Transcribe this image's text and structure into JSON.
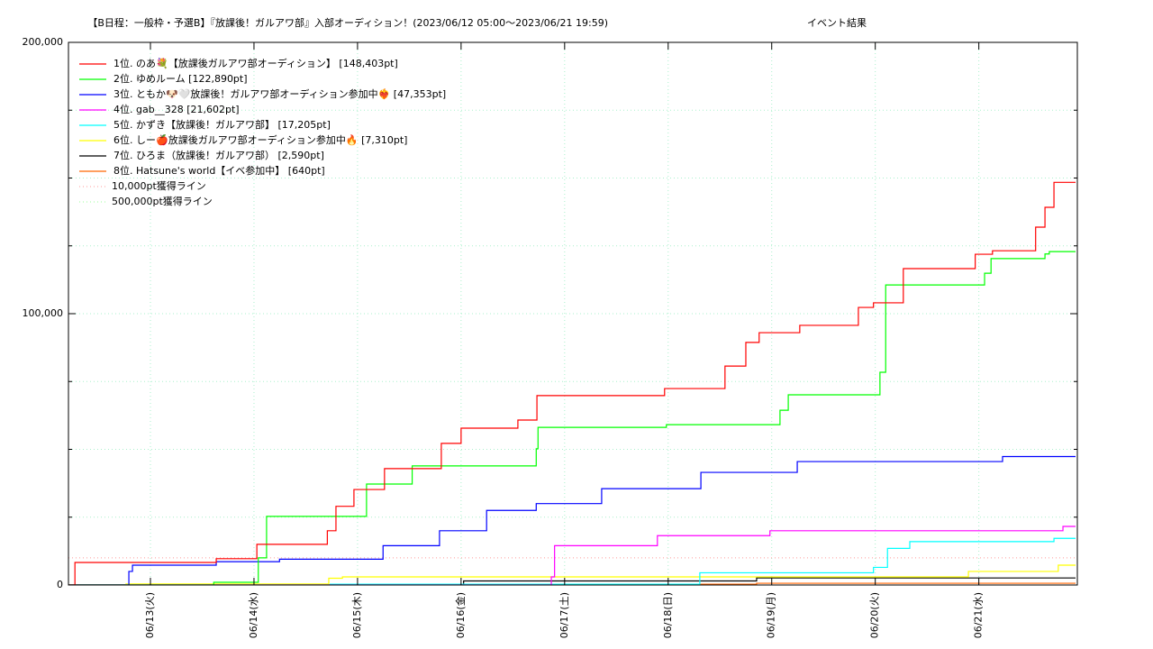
{
  "chart_data": {
    "type": "line",
    "step": true,
    "title": "【B日程：一般枠・予選B】『放課後！ガルアワ部』入部オーディション！(2023/06/12 05:00〜2023/06/21 19:59)",
    "subtitle": "イベント結果",
    "xlim": [
      "2023/06/12 05:00",
      "2023/06/21 22:50"
    ],
    "xticks": [
      {
        "value": "2023/06/13 00:00",
        "label": "06/13(火)"
      },
      {
        "value": "2023/06/14 00:00",
        "label": "06/14(水)"
      },
      {
        "value": "2023/06/15 00:00",
        "label": "06/15(木)"
      },
      {
        "value": "2023/06/16 00:00",
        "label": "06/16(金)"
      },
      {
        "value": "2023/06/17 00:00",
        "label": "06/17(土)"
      },
      {
        "value": "2023/06/18 00:00",
        "label": "06/18(日)"
      },
      {
        "value": "2023/06/19 00:00",
        "label": "06/19(月)"
      },
      {
        "value": "2023/06/20 00:00",
        "label": "06/20(火)"
      },
      {
        "value": "2023/06/21 00:00",
        "label": "06/21(水)"
      }
    ],
    "ylim": [
      0,
      200000
    ],
    "yticks": [
      0,
      {
        "value": 100000,
        "label": "100,000"
      },
      {
        "value": 200000,
        "label": "200,000"
      }
    ],
    "yminorticks": [
      25000,
      50000,
      75000,
      125000,
      150000,
      175000
    ],
    "grid": true,
    "legend": "upper left",
    "series": [
      {
        "name": "1位. のあ💐【放課後ガルアワ部オーディション】 [148,403pt]",
        "color": "#ff0000",
        "x": [
          "2023/06/12 05:00",
          "2023/06/12 06:30",
          "2023/06/13 15:15",
          "2023/06/14 00:40",
          "2023/06/14 17:00",
          "2023/06/14 19:00",
          "2023/06/14 23:10",
          "2023/06/15 06:15",
          "2023/06/15 19:25",
          "2023/06/16 00:00",
          "2023/06/16 13:10",
          "2023/06/16 17:35",
          "2023/06/17 23:10",
          "2023/06/18 13:10",
          "2023/06/18 18:00",
          "2023/06/18 21:05",
          "2023/06/19 06:30",
          "2023/06/19 20:05",
          "2023/06/19 23:35",
          "2023/06/20 06:30",
          "2023/06/20 23:10",
          "2023/06/21 03:10",
          "2023/06/21 13:10",
          "2023/06/21 15:20",
          "2023/06/21 17:25"
        ],
        "values": [
          0,
          8300,
          9700,
          15000,
          20000,
          29000,
          35200,
          42900,
          52200,
          57800,
          60800,
          69800,
          72400,
          80700,
          89400,
          93000,
          95700,
          102300,
          104000,
          116600,
          121900,
          123200,
          131900,
          139200,
          148403
        ]
      },
      {
        "name": "2位. ゆめルーム [122,890pt]",
        "color": "#00ff00",
        "x": [
          "2023/06/12 05:00",
          "2023/06/13 14:40",
          "2023/06/14 01:00",
          "2023/06/14 02:55",
          "2023/06/15 02:05",
          "2023/06/15 12:40",
          "2023/06/16 17:25",
          "2023/06/16 17:50",
          "2023/06/17 23:35",
          "2023/06/19 01:55",
          "2023/06/19 03:50",
          "2023/06/20 01:05",
          "2023/06/20 02:25",
          "2023/06/21 01:20",
          "2023/06/21 02:50",
          "2023/06/21 15:20",
          "2023/06/21 16:20"
        ],
        "values": [
          0,
          1000,
          10000,
          25300,
          37200,
          43900,
          50200,
          58100,
          59100,
          64400,
          70100,
          78400,
          110600,
          114900,
          120300,
          122000,
          122890
        ]
      },
      {
        "name": "3位. ともか🐶🤍放課後！ガルアワ部オーディション参加中❤️‍🔥 [47,353pt]",
        "color": "#0000ff",
        "x": [
          "2023/06/12 05:00",
          "2023/06/12 19:00",
          "2023/06/12 19:50",
          "2023/06/13 15:15",
          "2023/06/14 05:55",
          "2023/06/15 05:55",
          "2023/06/15 19:00",
          "2023/06/16 05:55",
          "2023/06/16 17:25",
          "2023/06/17 08:35",
          "2023/06/18 07:35",
          "2023/06/19 05:55",
          "2023/06/21 05:30"
        ],
        "values": [
          0,
          5000,
          7300,
          8600,
          9500,
          14500,
          20000,
          27500,
          30000,
          35500,
          41500,
          45500,
          47353
        ]
      },
      {
        "name": "4位. gab__328 [21,602pt]",
        "color": "#ff00ff",
        "x": [
          "2023/06/12 05:00",
          "2023/06/16 20:55",
          "2023/06/16 21:40",
          "2023/06/17 21:30",
          "2023/06/18 23:35",
          "2023/06/21 19:30"
        ],
        "values": [
          0,
          3000,
          14500,
          18200,
          20000,
          21602
        ]
      },
      {
        "name": "5位. かずき【放課後！ガルアワ部】 [17,205pt]",
        "color": "#00ffff",
        "x": [
          "2023/06/12 05:00",
          "2023/06/14 17:40",
          "2023/06/18 07:20",
          "2023/06/19 23:35",
          "2023/06/20 02:50",
          "2023/06/20 08:00",
          "2023/06/21 17:25"
        ],
        "values": [
          0,
          300,
          4500,
          6500,
          13500,
          16000,
          17205
        ]
      },
      {
        "name": "6位. しー🍎放課後ガルアワ部オーディション参加中🔥 [7,310pt]",
        "color": "#ffff00",
        "x": [
          "2023/06/12 05:00",
          "2023/06/12 18:20",
          "2023/06/14 17:20",
          "2023/06/14 20:30",
          "2023/06/20 21:35",
          "2023/06/21 18:25"
        ],
        "values": [
          0,
          400,
          2500,
          3000,
          5000,
          7310
        ]
      },
      {
        "name": "7位. ひろま（放課後！ガルアワ部） [2,590pt]",
        "color": "#000000",
        "x": [
          "2023/06/12 05:00",
          "2023/06/16 00:35",
          "2023/06/18 20:30"
        ],
        "values": [
          0,
          1500,
          2590
        ]
      },
      {
        "name": "8位. Hatsune's world【イベ参加中】 [640pt]",
        "color": "#ff6600",
        "x": [
          "2023/06/12 05:00",
          "2023/06/14 18:25",
          "2023/06/18 20:30"
        ],
        "values": [
          0,
          300,
          640
        ]
      }
    ],
    "reference_lines": [
      {
        "name": "10,000pt獲得ライン",
        "value": 10000,
        "color": "#ff9999"
      },
      {
        "name": "500,000pt獲得ライン",
        "value": 500000,
        "color": "#99ff99"
      }
    ]
  }
}
